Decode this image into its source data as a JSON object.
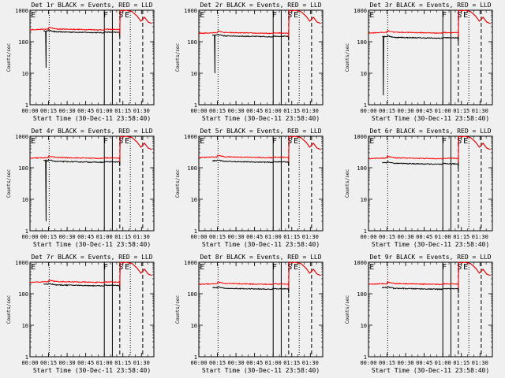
{
  "chart_data": {
    "type": "line",
    "shared": {
      "x_tick_labels": [
        "00:00",
        "00:15",
        "00:30",
        "00:45",
        "01:00",
        "01:15",
        "01:30"
      ],
      "x_ticks_min": [
        0,
        15,
        30,
        45,
        60,
        75,
        90
      ],
      "xlim_min": [
        0,
        100
      ],
      "xlabel": "Start Time (30-Dec-11 23:58:40)",
      "ylabel": "Counts/sec",
      "yscale": "log",
      "ylim": [
        1,
        1000
      ],
      "y_tick_labels": [
        "1",
        "10",
        "100",
        "1000"
      ],
      "y_ticks": [
        1,
        10,
        100,
        1000
      ],
      "markers": {
        "F_lines_min": [
          60,
          66.5
        ],
        "dashed_lines_min": [
          72.5,
          91
        ],
        "dotted_lines_min": [
          15.5,
          81
        ],
        "labels": [
          {
            "text": "E",
            "at_min": 0.8
          },
          {
            "text": "F",
            "at_min": 59.2
          },
          {
            "text": "S",
            "at_min": 71.5
          },
          {
            "text": "E",
            "at_min": 76.5
          }
        ]
      },
      "series_names": [
        "Events (black)",
        "LLD (red)"
      ],
      "series_colors": [
        "#000000",
        "#ff0000"
      ]
    },
    "panels": [
      {
        "title": "Det 1r BLACK = Events, RED = LLD",
        "base_black": 195,
        "base_red": 240,
        "spike_min": 13,
        "spike_min_value": 15
      },
      {
        "title": "Det 2r BLACK = Events, RED = LLD",
        "base_black": 145,
        "base_red": 185,
        "spike_min": 13,
        "spike_min_value": 10
      },
      {
        "title": "Det 3r BLACK = Events, RED = LLD",
        "base_black": 130,
        "base_red": 190,
        "spike_min": 12,
        "spike_min_value": 2
      },
      {
        "title": "Det 4r BLACK = Events, RED = LLD",
        "base_black": 150,
        "base_red": 200,
        "spike_min": 13,
        "spike_min_value": 2
      },
      {
        "title": "Det 5r BLACK = Events, RED = LLD",
        "base_black": 150,
        "base_red": 210,
        "spike_min": null,
        "spike_min_value": null
      },
      {
        "title": "Det 6r BLACK = Events, RED = LLD",
        "base_black": 130,
        "base_red": 195,
        "spike_min": null,
        "spike_min_value": null
      },
      {
        "title": "Det 7r BLACK = Events, RED = LLD",
        "base_black": 180,
        "base_red": 230,
        "spike_min": null,
        "spike_min_value": null
      },
      {
        "title": "Det 8r BLACK = Events, RED = LLD",
        "base_black": 140,
        "base_red": 200,
        "spike_min": null,
        "spike_min_value": null
      },
      {
        "title": "Det 9r BLACK = Events, RED = LLD",
        "base_black": 140,
        "base_red": 200,
        "spike_min": null,
        "spike_min_value": null
      }
    ]
  }
}
